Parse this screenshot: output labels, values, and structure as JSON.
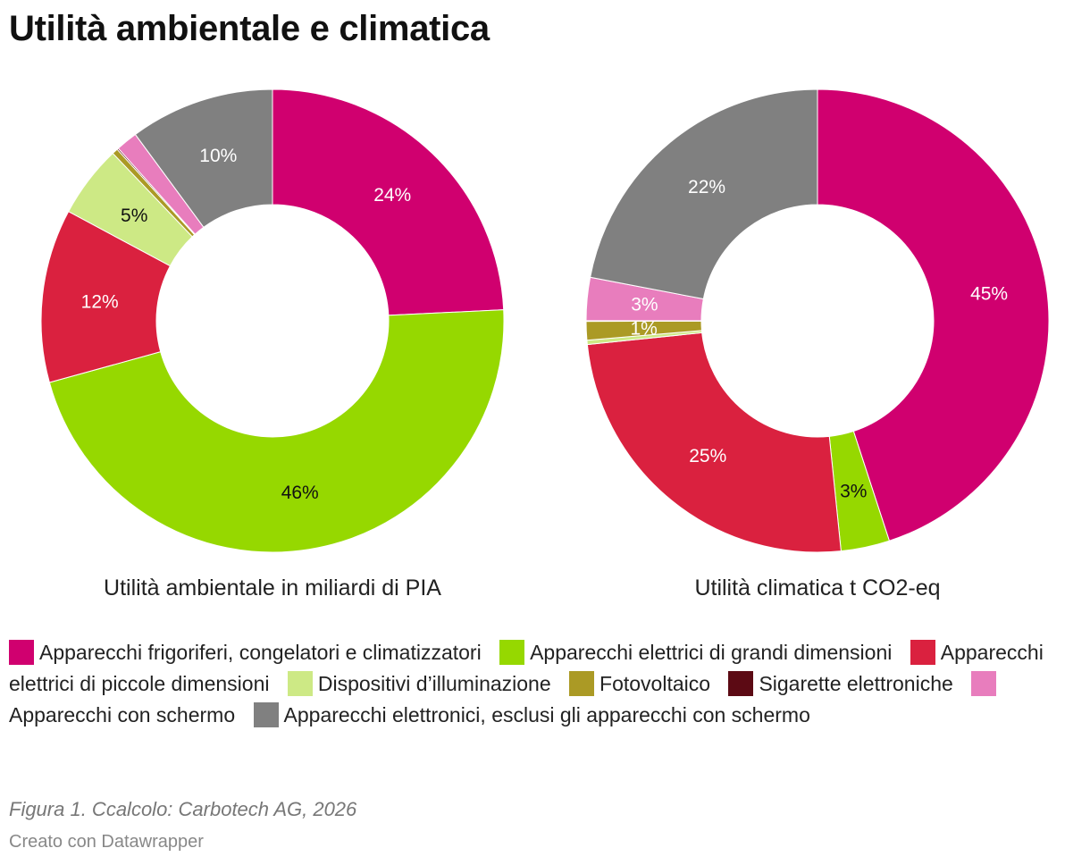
{
  "header": {
    "title": "Utilità ambientale e climatica"
  },
  "chart_data": [
    {
      "type": "pie",
      "title": "Utilità ambientale in miliardi di PIA",
      "slices": [
        {
          "name": "Apparecchi frigoriferi, congelatori e climatizzatori",
          "value": 24,
          "label": "24%",
          "color": "#d0006f",
          "label_color": "#ffffff"
        },
        {
          "name": "Apparecchi elettrici di grandi dimensioni",
          "value": 46,
          "label": "46%",
          "color": "#96d800",
          "label_color": "#111111"
        },
        {
          "name": "Apparecchi elettrici di piccole dimensioni",
          "value": 12,
          "label": "12%",
          "color": "#da213f",
          "label_color": "#ffffff"
        },
        {
          "name": "Dispositivi d’illuminazione",
          "value": 5,
          "label": "5%",
          "color": "#cde985",
          "label_color": "#111111"
        },
        {
          "name": "Fotovoltaico",
          "value": 0.4,
          "label": "",
          "color": "#ab9a25",
          "label_color": "#111111"
        },
        {
          "name": "Sigarette elettroniche",
          "value": 0.1,
          "label": "",
          "color": "#5c0a14",
          "label_color": "#ffffff"
        },
        {
          "name": "Apparecchi con schermo",
          "value": 1.5,
          "label": "",
          "color": "#e87dbd",
          "label_color": "#ffffff"
        },
        {
          "name": "Apparecchi elettronici, esclusi gli apparecchi con schermo",
          "value": 10,
          "label": "10%",
          "color": "#808080",
          "label_color": "#ffffff"
        }
      ]
    },
    {
      "type": "pie",
      "title": "Utilità climatica t CO2-eq",
      "slices": [
        {
          "name": "Apparecchi frigoriferi, congelatori e climatizzatori",
          "value": 45,
          "label": "45%",
          "color": "#d0006f",
          "label_color": "#ffffff"
        },
        {
          "name": "Apparecchi elettrici di grandi dimensioni",
          "value": 3.4,
          "label": "3%",
          "color": "#96d800",
          "label_color": "#111111"
        },
        {
          "name": "Apparecchi elettrici di piccole dimensioni",
          "value": 25,
          "label": "25%",
          "color": "#da213f",
          "label_color": "#ffffff"
        },
        {
          "name": "Dispositivi d’illuminazione",
          "value": 0.3,
          "label": "",
          "color": "#cde985",
          "label_color": "#111111"
        },
        {
          "name": "Fotovoltaico",
          "value": 1.3,
          "label": "1%",
          "color": "#ab9a25",
          "label_color": "#ffffff"
        },
        {
          "name": "Sigarette elettroniche",
          "value": 0.05,
          "label": "",
          "color": "#5c0a14",
          "label_color": "#ffffff"
        },
        {
          "name": "Apparecchi con schermo",
          "value": 3,
          "label": "3%",
          "color": "#e87dbd",
          "label_color": "#ffffff"
        },
        {
          "name": "Apparecchi elettronici, esclusi gli apparecchi con schermo",
          "value": 22,
          "label": "22%",
          "color": "#808080",
          "label_color": "#ffffff"
        }
      ]
    }
  ],
  "legend": [
    {
      "label": "Apparecchi frigoriferi, congelatori e climatizzatori",
      "color": "#d0006f"
    },
    {
      "label": "Apparecchi elettrici di grandi dimensioni",
      "color": "#96d800"
    },
    {
      "label": "Apparecchi elettrici di piccole dimensioni",
      "color": "#da213f"
    },
    {
      "label": "Dispositivi d’illuminazione",
      "color": "#cde985"
    },
    {
      "label": "Fotovoltaico",
      "color": "#ab9a25"
    },
    {
      "label": "Sigarette elettroniche",
      "color": "#5c0a14"
    },
    {
      "label": "Apparecchi con schermo",
      "color": "#e87dbd"
    },
    {
      "label": "Apparecchi elettronici, esclusi gli apparecchi con schermo",
      "color": "#808080"
    }
  ],
  "footer": {
    "caption": "Figura 1. Ccalcolo: Carbotech AG, 2026",
    "credit": "Creato con Datawrapper"
  }
}
